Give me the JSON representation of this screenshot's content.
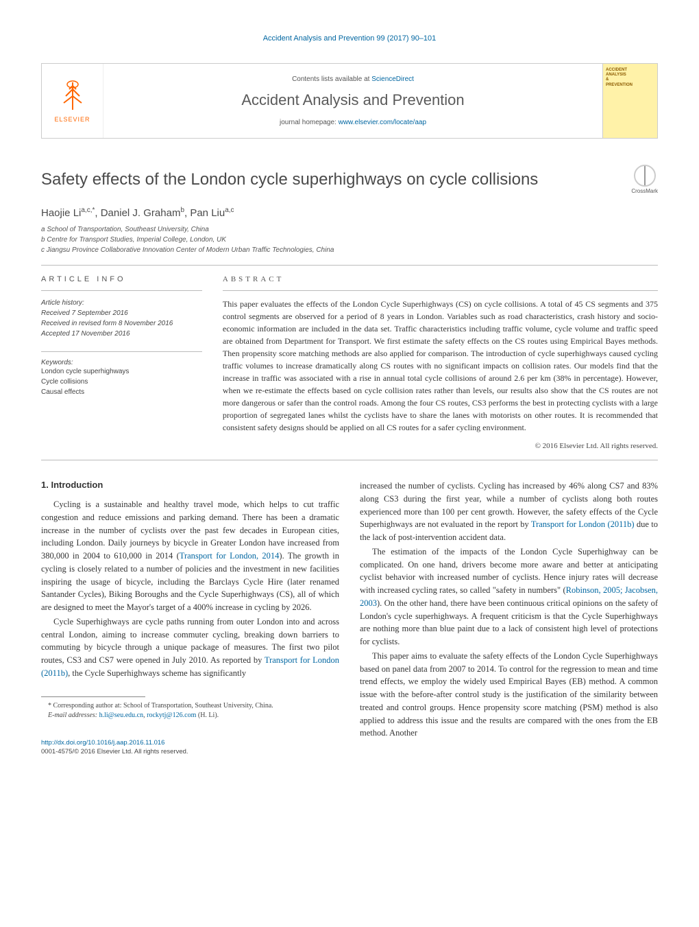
{
  "running_header": "Accident Analysis and Prevention 99 (2017) 90–101",
  "topbar": {
    "elsevier": "ELSEVIER",
    "contents_prefix": "Contents lists available at ",
    "contents_link": "ScienceDirect",
    "journal": "Accident Analysis and Prevention",
    "homepage_prefix": "journal homepage: ",
    "homepage_link": "www.elsevier.com/locate/aap",
    "cover_lines": [
      "ACCIDENT",
      "ANALYSIS",
      "&",
      "PREVENTION"
    ]
  },
  "crossmark": "CrossMark",
  "title": "Safety effects of the London cycle superhighways on cycle collisions",
  "authors_html": "Haojie Li<sup>a,c,*</sup>, Daniel J. Graham<sup>b</sup>, Pan Liu<sup>a,c</sup>",
  "affiliations": [
    "a School of Transportation, Southeast University, China",
    "b Centre for Transport Studies, Imperial College, London, UK",
    "c Jiangsu Province Collaborative Innovation Center of Modern Urban Traffic Technologies, China"
  ],
  "article_info_head": "article info",
  "abstract_head": "abstract",
  "history": {
    "head": "Article history:",
    "received": "Received 7 September 2016",
    "revised": "Received in revised form 8 November 2016",
    "accepted": "Accepted 17 November 2016"
  },
  "keywords_head": "Keywords:",
  "keywords": [
    "London cycle superhighways",
    "Cycle collisions",
    "Causal effects"
  ],
  "abstract": "This paper evaluates the effects of the London Cycle Superhighways (CS) on cycle collisions. A total of 45 CS segments and 375 control segments are observed for a period of 8 years in London. Variables such as road characteristics, crash history and socio-economic information are included in the data set. Traffic characteristics including traffic volume, cycle volume and traffic speed are obtained from Department for Transport. We first estimate the safety effects on the CS routes using Empirical Bayes methods. Then propensity score matching methods are also applied for comparison. The introduction of cycle superhighways caused cycling traffic volumes to increase dramatically along CS routes with no significant impacts on collision rates. Our models find that the increase in traffic was associated with a rise in annual total cycle collisions of around 2.6 per km (38% in percentage). However, when we re-estimate the effects based on cycle collision rates rather than levels, our results also show that the CS routes are not more dangerous or safer than the control roads. Among the four CS routes, CS3 performs the best in protecting cyclists with a large proportion of segregated lanes whilst the cyclists have to share the lanes with motorists on other routes. It is recommended that consistent safety designs should be applied on all CS routes for a safer cycling environment.",
  "copyright_line": "© 2016 Elsevier Ltd. All rights reserved.",
  "section1_head": "1. Introduction",
  "col1": {
    "p1_a": "Cycling is a sustainable and healthy travel mode, which helps to cut traffic congestion and reduce emissions and parking demand. There has been a dramatic increase in the number of cyclists over the past few decades in European cities, including London. Daily journeys by bicycle in Greater London have increased from 380,000 in 2004 to 610,000 in 2014 (",
    "p1_link": "Transport for London, 2014",
    "p1_b": "). The growth in cycling is closely related to a number of policies and the investment in new facilities inspiring the usage of bicycle, including the Barclays Cycle Hire (later renamed Santander Cycles), Biking Boroughs and the Cycle Superhighways (CS), all of which are designed to meet the Mayor's target of a 400% increase in cycling by 2026.",
    "p2_a": "Cycle Superhighways are cycle paths running from outer London into and across central London, aiming to increase commuter cycling, breaking down barriers to commuting by bicycle through a unique package of measures. The first two pilot routes, CS3 and CS7 were opened in July 2010. As reported by ",
    "p2_link": "Transport for London (2011b)",
    "p2_b": ", the Cycle Superhighways scheme has significantly"
  },
  "col2": {
    "p1_a": "increased the number of cyclists. Cycling has increased by 46% along CS7 and 83% along CS3 during the first year, while a number of cyclists along both routes experienced more than 100 per cent growth. However, the safety effects of the Cycle Superhighways are not evaluated in the report by ",
    "p1_link": "Transport for London (2011b)",
    "p1_b": " due to the lack of post-intervention accident data.",
    "p2_a": "The estimation of the impacts of the London Cycle Superhighway can be complicated. On one hand, drivers become more aware and better at anticipating cyclist behavior with increased number of cyclists. Hence injury rates will decrease with increased cycling rates, so called \"safety in numbers\" (",
    "p2_link": "Robinson, 2005; Jacobsen, 2003",
    "p2_b": "). On the other hand, there have been continuous critical opinions on the safety of London's cycle superhighways. A frequent criticism is that the Cycle Superhighways are nothing more than blue paint due to a lack of consistent high level of protections for cyclists.",
    "p3": "This paper aims to evaluate the safety effects of the London Cycle Superhighways based on panel data from 2007 to 2014. To control for the regression to mean and time trend effects, we employ the widely used Empirical Bayes (EB) method. A common issue with the before-after control study is the justification of the similarity between treated and control groups. Hence propensity score matching (PSM) method is also applied to address this issue and the results are compared with the ones from the EB method. Another"
  },
  "footnote": {
    "star": "* Corresponding author at: School of Transportation, Southeast University, China.",
    "email_prefix": "E-mail addresses: ",
    "email1": "h.li@seu.edu.cn",
    "email_sep": ", ",
    "email2": "rockytj@126.com",
    "email_suffix": " (H. Li)."
  },
  "doi": {
    "link": "http://dx.doi.org/10.1016/j.aap.2016.11.016",
    "copy": "0001-4575/© 2016 Elsevier Ltd. All rights reserved."
  }
}
